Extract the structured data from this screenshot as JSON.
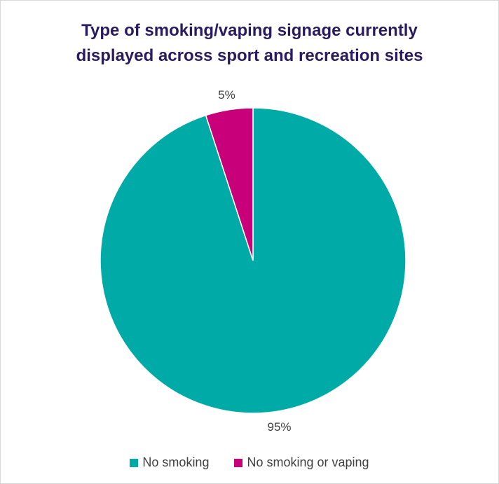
{
  "chart_data": {
    "type": "pie",
    "title": "Type of smoking/vaping signage currently displayed across sport and recreation sites",
    "title_lines": [
      "Type of smoking/vaping signage currently",
      "displayed across sport and recreation sites"
    ],
    "slices": [
      {
        "label": "No smoking",
        "value": 95,
        "display": "95%",
        "color": "#00aaa6"
      },
      {
        "label": "No smoking or vaping",
        "value": 5,
        "display": "5%",
        "color": "#c8007a"
      }
    ],
    "legend_position": "bottom"
  }
}
